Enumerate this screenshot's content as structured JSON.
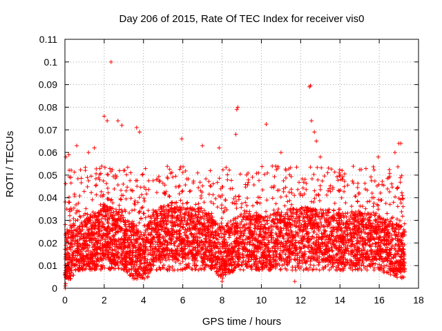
{
  "chart_data": {
    "type": "scatter",
    "title": "Day 206 of 2015, Rate Of TEC Index for receiver vis0",
    "xlabel": "GPS time / hours",
    "ylabel": "ROTI / TECUs",
    "xlim": [
      0,
      18
    ],
    "ylim": [
      0,
      0.11
    ],
    "x_ticks": [
      "0",
      "2",
      "4",
      "6",
      "8",
      "10",
      "12",
      "14",
      "16",
      "18"
    ],
    "y_ticks": [
      "0",
      "0.01",
      "0.02",
      "0.03",
      "0.04",
      "0.05",
      "0.06",
      "0.07",
      "0.08",
      "0.09",
      "0.1",
      "0.11"
    ],
    "grid": true,
    "marker": "plus",
    "color": "#ff0000",
    "x_range_of_data": [
      0,
      17.3
    ],
    "dense_band": {
      "typical_low": 0.008,
      "typical_high": 0.05,
      "samples": [
        [
          0.0,
          0.012
        ],
        [
          0.5,
          0.018
        ],
        [
          1.0,
          0.022
        ],
        [
          1.5,
          0.02
        ],
        [
          2.0,
          0.025
        ],
        [
          2.5,
          0.023
        ],
        [
          3.0,
          0.02
        ],
        [
          3.5,
          0.016
        ],
        [
          4.0,
          0.012
        ],
        [
          4.5,
          0.022
        ],
        [
          5.0,
          0.025
        ],
        [
          6.0,
          0.024
        ],
        [
          7.0,
          0.024
        ],
        [
          8.0,
          0.015
        ],
        [
          9.0,
          0.022
        ],
        [
          10.0,
          0.02
        ],
        [
          11.0,
          0.022
        ],
        [
          12.0,
          0.024
        ],
        [
          13.0,
          0.024
        ],
        [
          14.0,
          0.022
        ],
        [
          15.0,
          0.022
        ],
        [
          16.0,
          0.02
        ],
        [
          17.0,
          0.016
        ]
      ]
    },
    "notable_points": [
      [
        2.35,
        0.1
      ],
      [
        12.45,
        0.089
      ],
      [
        12.5,
        0.0895
      ],
      [
        8.8,
        0.08
      ],
      [
        8.75,
        0.079
      ],
      [
        8.7,
        0.068
      ],
      [
        2.0,
        0.076
      ],
      [
        2.15,
        0.074
      ],
      [
        2.7,
        0.074
      ],
      [
        2.9,
        0.072
      ],
      [
        3.65,
        0.071
      ],
      [
        3.8,
        0.069
      ],
      [
        10.25,
        0.0725
      ],
      [
        12.55,
        0.074
      ],
      [
        12.7,
        0.069
      ],
      [
        12.8,
        0.065
      ],
      [
        5.95,
        0.066
      ],
      [
        7.0,
        0.063
      ],
      [
        7.85,
        0.062
      ],
      [
        17.0,
        0.064
      ],
      [
        17.1,
        0.064
      ],
      [
        16.8,
        0.06
      ],
      [
        15.95,
        0.058
      ],
      [
        0.6,
        0.063
      ],
      [
        0.2,
        0.059
      ],
      [
        0.05,
        0.058
      ],
      [
        1.2,
        0.06
      ],
      [
        1.5,
        0.062
      ],
      [
        11.0,
        0.06
      ],
      [
        13.0,
        0.058
      ],
      [
        8.0,
        0.003
      ],
      [
        11.7,
        0.003
      ],
      [
        0.02,
        0.0
      ],
      [
        0.02,
        0.001
      ],
      [
        0.04,
        0.002
      ]
    ]
  }
}
